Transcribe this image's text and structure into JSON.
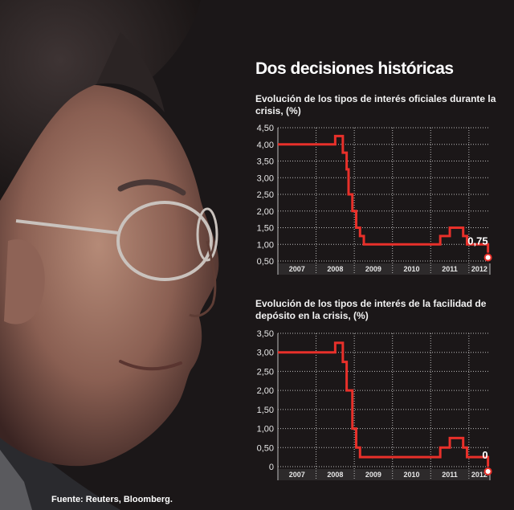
{
  "header": {
    "title": "Dos decisiones históricas"
  },
  "footer": {
    "source": "Fuente: Reuters, Bloomberg."
  },
  "chart_data": [
    {
      "type": "line",
      "step": true,
      "title": "Evolución de los tipos de interés oficiales durante la crisis, (%)",
      "xlabel": "",
      "ylabel": "",
      "x_ticks": [
        "2007",
        "2008",
        "2009",
        "2010",
        "2011",
        "2012"
      ],
      "y_ticks": [
        "0,50",
        "1,00",
        "1,50",
        "2,00",
        "2,50",
        "3,00",
        "3,50",
        "4,00",
        "4,50"
      ],
      "ylim": [
        0.5,
        4.5
      ],
      "xlim": [
        2007.0,
        2012.55
      ],
      "grid": true,
      "line_color": "#e8302a",
      "end_label": "0,75",
      "series": [
        {
          "x": [
            2007.0,
            2008.5,
            2008.7,
            2008.8,
            2008.85,
            2008.95,
            2009.05,
            2009.15,
            2009.25,
            2009.35,
            2011.25,
            2011.5,
            2011.85,
            2011.95,
            2012.5
          ],
          "y": [
            4.0,
            4.25,
            3.75,
            3.25,
            2.5,
            2.0,
            1.5,
            1.25,
            1.0,
            1.0,
            1.25,
            1.5,
            1.25,
            1.0,
            0.75
          ]
        }
      ]
    },
    {
      "type": "line",
      "step": true,
      "title": "Evolución de los tipos de interés de la facilidad de depósito en la crisis, (%)",
      "xlabel": "",
      "ylabel": "",
      "x_ticks": [
        "2007",
        "2008",
        "2009",
        "2010",
        "2011",
        "2012"
      ],
      "y_ticks": [
        "0",
        "0,50",
        "1,00",
        "1,50",
        "2,00",
        "2,50",
        "3,00",
        "3,50"
      ],
      "ylim": [
        0,
        3.5
      ],
      "xlim": [
        2007.0,
        2012.55
      ],
      "grid": true,
      "line_color": "#e8302a",
      "end_label": "0",
      "series": [
        {
          "x": [
            2007.0,
            2008.5,
            2008.7,
            2008.8,
            2008.85,
            2008.95,
            2009.05,
            2009.15,
            2009.25,
            2009.35,
            2011.25,
            2011.5,
            2011.85,
            2011.95,
            2012.5
          ],
          "y": [
            3.0,
            3.25,
            2.75,
            2.0,
            2.0,
            1.0,
            0.5,
            0.25,
            0.25,
            0.25,
            0.5,
            0.75,
            0.5,
            0.25,
            0.0
          ]
        }
      ]
    }
  ]
}
